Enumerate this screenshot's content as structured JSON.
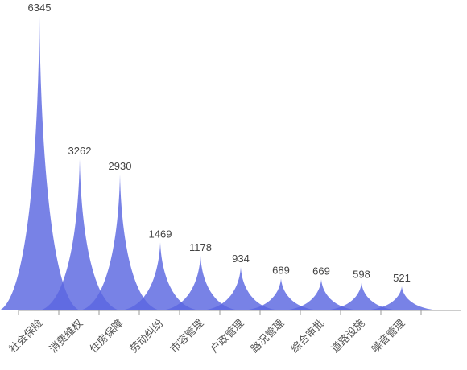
{
  "chart_data": {
    "type": "area",
    "subtype": "pictorial-spike",
    "categories": [
      "社会保险",
      "消费维权",
      "住房保障",
      "劳动纠纷",
      "市容管理",
      "户政管理",
      "路况管理",
      "综合审批",
      "道路设施",
      "噪音管理"
    ],
    "values": [
      6345,
      3262,
      2930,
      1469,
      1178,
      934,
      689,
      669,
      598,
      521
    ],
    "ylim": [
      0,
      6345
    ],
    "grid": false,
    "legend": "none",
    "colors": {
      "fill": "#5a67e0",
      "axis": "#999999",
      "label": "#444444"
    }
  }
}
